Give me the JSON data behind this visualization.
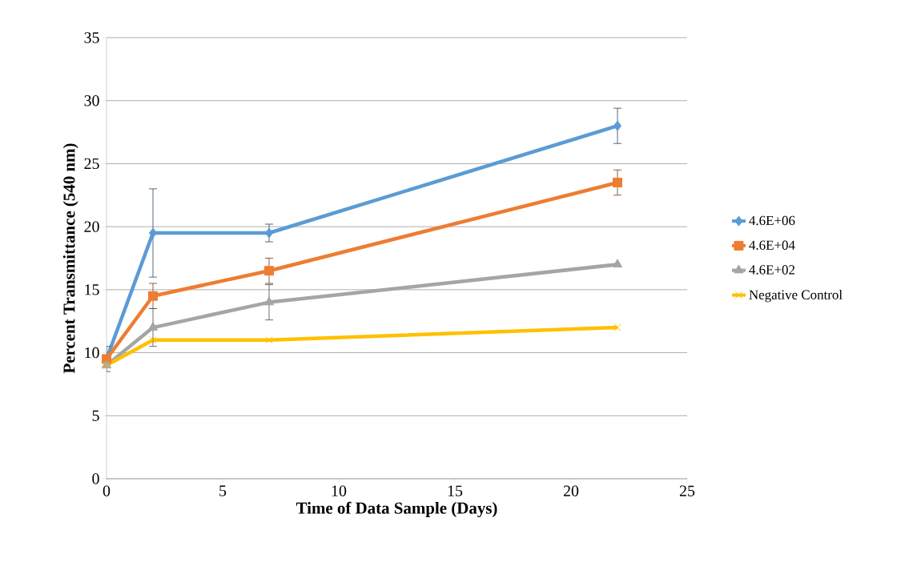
{
  "chart_data": {
    "type": "line",
    "xlabel": "Time of Data Sample (Days)",
    "ylabel": "Percent Transmittance (540 nm)",
    "x": [
      0,
      2,
      7,
      22
    ],
    "series": [
      {
        "name": "4.6E+06",
        "color": "#5b9bd5",
        "marker": "diamond",
        "values": [
          9.5,
          19.5,
          19.5,
          28
        ],
        "errors": [
          1,
          3.5,
          0.7,
          1.4
        ]
      },
      {
        "name": "4.6E+04",
        "color": "#ed7d31",
        "marker": "square",
        "values": [
          9.5,
          14.5,
          16.5,
          23.5
        ],
        "errors": [
          null,
          1,
          1,
          1
        ]
      },
      {
        "name": "4.6E+02",
        "color": "#a5a5a5",
        "marker": "triangle",
        "values": [
          9,
          12,
          14,
          17
        ],
        "errors": [
          null,
          1.5,
          1.4,
          null
        ]
      },
      {
        "name": "Negative Control",
        "color": "#ffc000",
        "marker": "cross",
        "values": [
          9,
          11,
          11,
          12
        ]
      }
    ],
    "xlim": [
      0,
      25
    ],
    "xticks": [
      0,
      5,
      10,
      15,
      20,
      25
    ],
    "ylim": [
      0,
      35
    ],
    "yticks": [
      0,
      5,
      10,
      15,
      20,
      25,
      30,
      35
    ],
    "grid": "y",
    "legend": "right"
  }
}
